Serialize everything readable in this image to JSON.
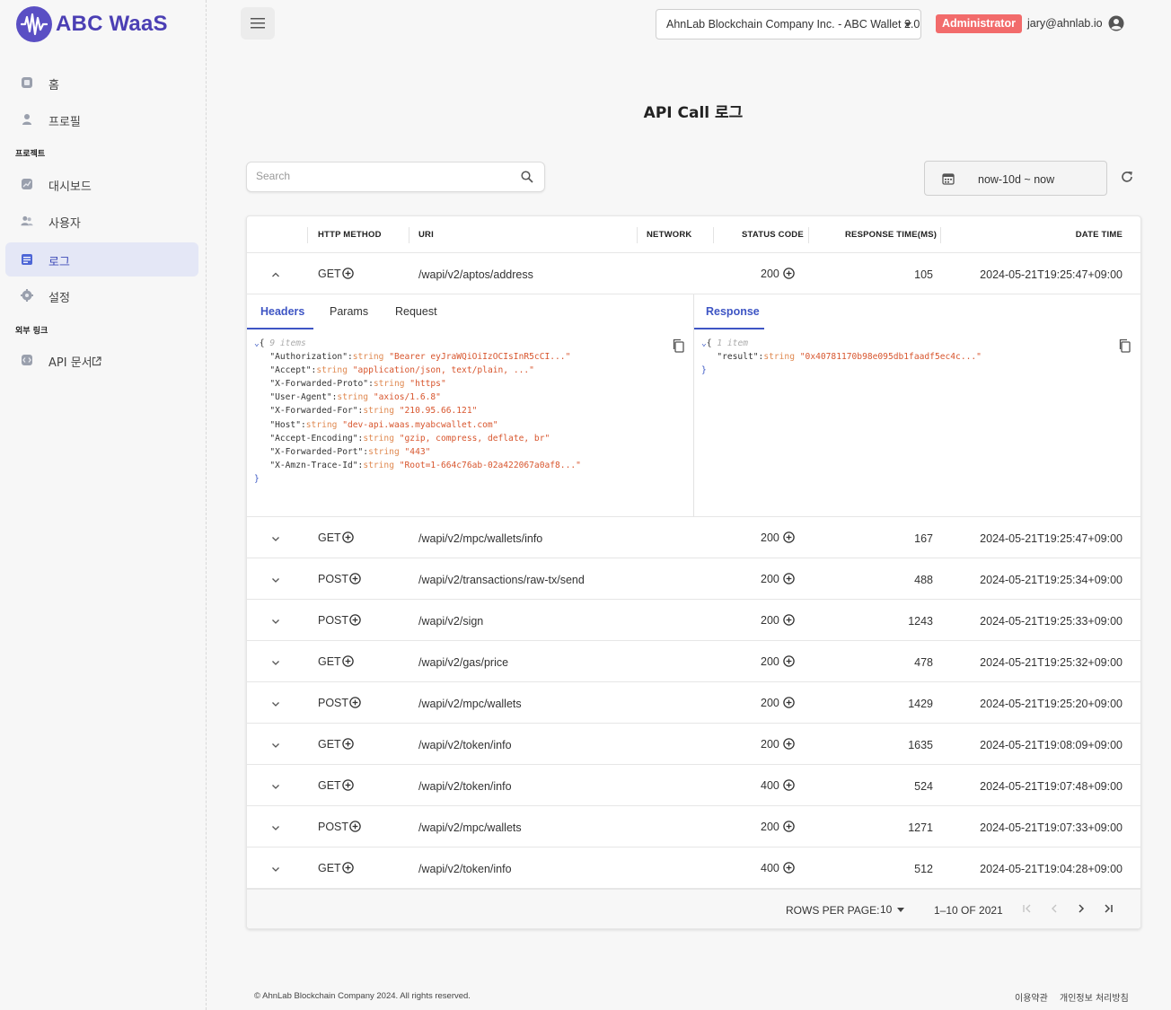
{
  "brand": {
    "name": "ABC WaaS",
    "accent": "#4b3fb4"
  },
  "sidebar": {
    "items": [
      {
        "label": "홈",
        "icon": "home-icon"
      },
      {
        "label": "프로필",
        "icon": "user-icon"
      },
      {
        "section": "프로젝트"
      },
      {
        "label": "대시보드",
        "icon": "dashboard-icon"
      },
      {
        "label": "사용자",
        "icon": "users-icon"
      },
      {
        "label": "로그",
        "icon": "log-icon",
        "active": true
      },
      {
        "label": "설정",
        "icon": "gear-icon"
      },
      {
        "section": "외부 링크"
      },
      {
        "label": "API 문서",
        "icon": "api-doc-icon",
        "external": true
      }
    ],
    "labels": [
      "홈",
      "프로필",
      "대시보드",
      "사용자",
      "로그",
      "설정",
      "API 문서"
    ],
    "sections": [
      "프로젝트",
      "외부 링크"
    ]
  },
  "header": {
    "project": "AhnLab Blockchain Company Inc. - ABC Wallet 2.0",
    "role": "Administrator",
    "email": "jary@ahnlab.io",
    "role_color": "#f26b6b"
  },
  "page": {
    "title": "API Call 로그"
  },
  "search": {
    "placeholder": "Search",
    "value": ""
  },
  "date_range": {
    "value": "now-10d ~ now"
  },
  "table": {
    "columns": [
      "HTTP METHOD",
      "URI",
      "NETWORK",
      "STATUS CODE",
      "RESPONSE TIME(MS)",
      "DATE TIME"
    ],
    "rows": [
      {
        "method": "GET",
        "uri": "/wapi/v2/aptos/address",
        "network": "",
        "status": "200",
        "response_time": "105",
        "date_time": "2024-05-21T19:25:47+09:00",
        "expanded": true
      },
      {
        "method": "GET",
        "uri": "/wapi/v2/mpc/wallets/info",
        "network": "",
        "status": "200",
        "response_time": "167",
        "date_time": "2024-05-21T19:25:47+09:00"
      },
      {
        "method": "POST",
        "uri": "/wapi/v2/transactions/raw-tx/send",
        "network": "",
        "status": "200",
        "response_time": "488",
        "date_time": "2024-05-21T19:25:34+09:00"
      },
      {
        "method": "POST",
        "uri": "/wapi/v2/sign",
        "network": "",
        "status": "200",
        "response_time": "1243",
        "date_time": "2024-05-21T19:25:33+09:00"
      },
      {
        "method": "GET",
        "uri": "/wapi/v2/gas/price",
        "network": "",
        "status": "200",
        "response_time": "478",
        "date_time": "2024-05-21T19:25:32+09:00"
      },
      {
        "method": "POST",
        "uri": "/wapi/v2/mpc/wallets",
        "network": "",
        "status": "200",
        "response_time": "1429",
        "date_time": "2024-05-21T19:25:20+09:00"
      },
      {
        "method": "GET",
        "uri": "/wapi/v2/token/info",
        "network": "",
        "status": "200",
        "response_time": "1635",
        "date_time": "2024-05-21T19:08:09+09:00"
      },
      {
        "method": "GET",
        "uri": "/wapi/v2/token/info",
        "network": "",
        "status": "400",
        "response_time": "524",
        "date_time": "2024-05-21T19:07:48+09:00"
      },
      {
        "method": "POST",
        "uri": "/wapi/v2/mpc/wallets",
        "network": "",
        "status": "200",
        "response_time": "1271",
        "date_time": "2024-05-21T19:07:33+09:00"
      },
      {
        "method": "GET",
        "uri": "/wapi/v2/token/info",
        "network": "",
        "status": "400",
        "response_time": "512",
        "date_time": "2024-05-21T19:04:28+09:00"
      }
    ]
  },
  "detail": {
    "left_tabs": [
      "Headers",
      "Params",
      "Request"
    ],
    "right_tabs": [
      "Response"
    ],
    "headers_meta": "9 items",
    "headers": [
      {
        "key": "\"Authorization\"",
        "type": "string",
        "value": "\"Bearer eyJraWQiOiIzOCIsInR5cCI...\""
      },
      {
        "key": "\"Accept\"",
        "type": "string",
        "value": "\"application/json, text/plain, ...\""
      },
      {
        "key": "\"X-Forwarded-Proto\"",
        "type": "string",
        "value": "\"https\""
      },
      {
        "key": "\"User-Agent\"",
        "type": "string",
        "value": "\"axios/1.6.8\""
      },
      {
        "key": "\"X-Forwarded-For\"",
        "type": "string",
        "value": "\"210.95.66.121\""
      },
      {
        "key": "\"Host\"",
        "type": "string",
        "value": "\"dev-api.waas.myabcwallet.com\""
      },
      {
        "key": "\"Accept-Encoding\"",
        "type": "string",
        "value": "\"gzip, compress, deflate, br\""
      },
      {
        "key": "\"X-Forwarded-Port\"",
        "type": "string",
        "value": "\"443\""
      },
      {
        "key": "\"X-Amzn-Trace-Id\"",
        "type": "string",
        "value": "\"Root=1-664c76ab-02a422067a0af8...\""
      }
    ],
    "response_meta": "1 item",
    "response": [
      {
        "key": "\"result\"",
        "type": "string",
        "value": "\"0x40781170b98e095db1faadf5ec4c...\""
      }
    ]
  },
  "pagination": {
    "rows_per_page_label": "ROWS PER PAGE:",
    "rows_per_page": "10",
    "range": "1–10 OF 2021"
  },
  "footer": {
    "copyright": "© AhnLab Blockchain Company 2024. All rights reserved.",
    "links": [
      "이용약관",
      "개인정보 처리방침"
    ]
  }
}
